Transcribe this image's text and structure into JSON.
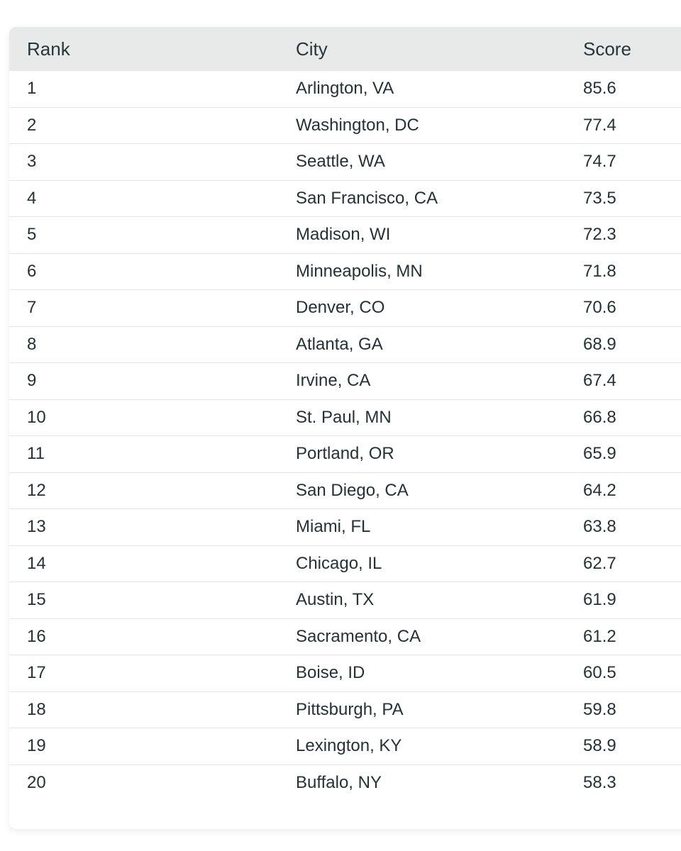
{
  "table": {
    "headers": {
      "rank": "Rank",
      "city": "City",
      "score": "Score"
    },
    "rows": [
      {
        "rank": "1",
        "city": "Arlington, VA",
        "score": "85.6"
      },
      {
        "rank": "2",
        "city": "Washington, DC",
        "score": "77.4"
      },
      {
        "rank": "3",
        "city": "Seattle, WA",
        "score": "74.7"
      },
      {
        "rank": "4",
        "city": "San Francisco, CA",
        "score": "73.5"
      },
      {
        "rank": "5",
        "city": "Madison, WI",
        "score": "72.3"
      },
      {
        "rank": "6",
        "city": "Minneapolis, MN",
        "score": "71.8"
      },
      {
        "rank": "7",
        "city": "Denver, CO",
        "score": "70.6"
      },
      {
        "rank": "8",
        "city": "Atlanta, GA",
        "score": "68.9"
      },
      {
        "rank": "9",
        "city": "Irvine, CA",
        "score": "67.4"
      },
      {
        "rank": "10",
        "city": "St. Paul, MN",
        "score": "66.8"
      },
      {
        "rank": "11",
        "city": "Portland, OR",
        "score": "65.9"
      },
      {
        "rank": "12",
        "city": "San Diego, CA",
        "score": "64.2"
      },
      {
        "rank": "13",
        "city": "Miami, FL",
        "score": "63.8"
      },
      {
        "rank": "14",
        "city": "Chicago, IL",
        "score": "62.7"
      },
      {
        "rank": "15",
        "city": "Austin, TX",
        "score": "61.9"
      },
      {
        "rank": "16",
        "city": "Sacramento, CA",
        "score": "61.2"
      },
      {
        "rank": "17",
        "city": "Boise, ID",
        "score": "60.5"
      },
      {
        "rank": "18",
        "city": "Pittsburgh, PA",
        "score": "59.8"
      },
      {
        "rank": "19",
        "city": "Lexington, KY",
        "score": "58.9"
      },
      {
        "rank": "20",
        "city": "Buffalo, NY",
        "score": "58.3"
      }
    ]
  }
}
